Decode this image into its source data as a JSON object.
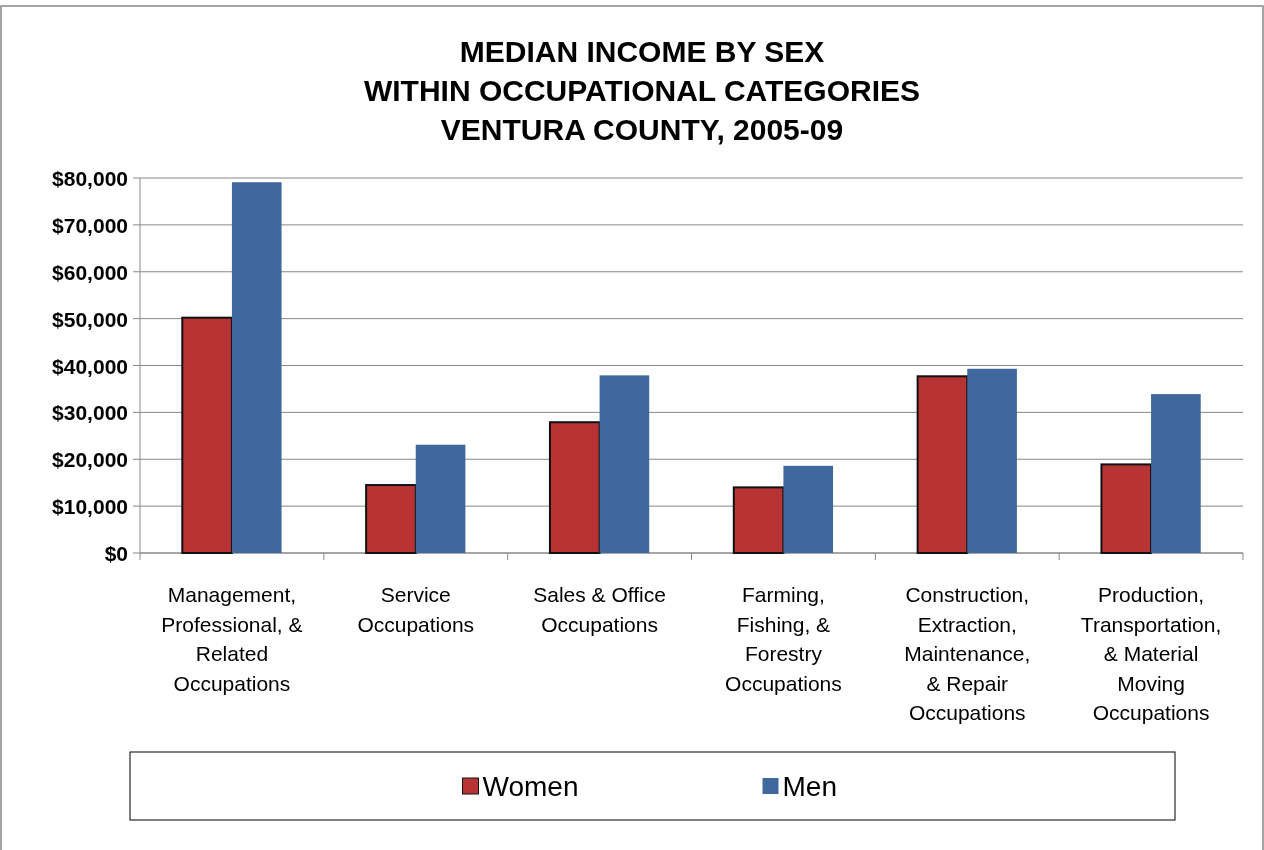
{
  "chart_data": {
    "type": "bar",
    "title": "MEDIAN INCOME BY SEX\nWITHIN OCCUPATIONAL CATEGORIES\nVENTURA COUNTY, 2005-09",
    "categories": [
      "Management,\nProfessional, &\nRelated\nOccupations",
      "Service\nOccupations",
      "Sales & Office\nOccupations",
      "Farming,\nFishing, &\nForestry\nOccupations",
      "Construction,\nExtraction,\nMaintenance,\n& Repair\nOccupations",
      "Production,\nTransportation,\n& Material\nMoving\nOccupations"
    ],
    "series": [
      {
        "name": "Women",
        "color": "#b83434",
        "values": [
          50200,
          14500,
          27900,
          14000,
          37700,
          18900
        ]
      },
      {
        "name": "Men",
        "color": "#3e689e",
        "values": [
          79100,
          23100,
          37900,
          18600,
          39300,
          33900
        ]
      }
    ],
    "ylim": [
      0,
      80000
    ],
    "yticks": [
      {
        "value": 0,
        "label": "$0"
      },
      {
        "value": 10000,
        "label": "$10,000"
      },
      {
        "value": 20000,
        "label": "$20,000"
      },
      {
        "value": 30000,
        "label": "$30,000"
      },
      {
        "value": 40000,
        "label": "$40,000"
      },
      {
        "value": 50000,
        "label": "$50,000"
      },
      {
        "value": 60000,
        "label": "$60,000"
      },
      {
        "value": 70000,
        "label": "$70,000"
      },
      {
        "value": 80000,
        "label": "$80,000"
      }
    ],
    "grid": "y",
    "legend": "bottom"
  }
}
